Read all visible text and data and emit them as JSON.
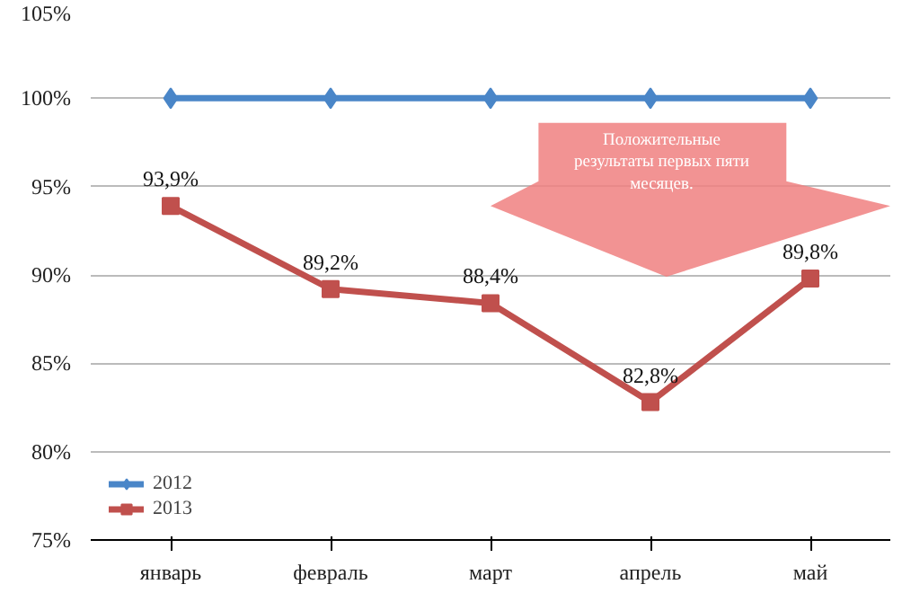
{
  "chart_data": {
    "type": "line",
    "categories": [
      "январь",
      "февраль",
      "март",
      "апрель",
      "май"
    ],
    "series": [
      {
        "name": "2012",
        "color": "#4a86c8",
        "values": [
          100,
          100,
          100,
          100,
          100
        ],
        "marker": "diamond"
      },
      {
        "name": "2013",
        "color": "#c0504d",
        "values": [
          93.9,
          89.2,
          88.4,
          82.8,
          89.8
        ],
        "marker": "square",
        "value_labels": [
          "93,9%",
          "89,2%",
          "88,4%",
          "82,8%",
          "89,8%"
        ]
      }
    ],
    "ylim": [
      75,
      105
    ],
    "yticks": [
      {
        "value": 75,
        "label": "75%"
      },
      {
        "value": 80,
        "label": "80%"
      },
      {
        "value": 85,
        "label": "85%"
      },
      {
        "value": 90,
        "label": "90%"
      },
      {
        "value": 95,
        "label": "95%"
      },
      {
        "value": 100,
        "label": "100%"
      },
      {
        "value": 105,
        "label": "105%"
      }
    ],
    "grid": "y",
    "legend": "bottom left",
    "line_style": "solid",
    "annotations": [
      "Положительные результаты первых пяти месяцев."
    ]
  }
}
